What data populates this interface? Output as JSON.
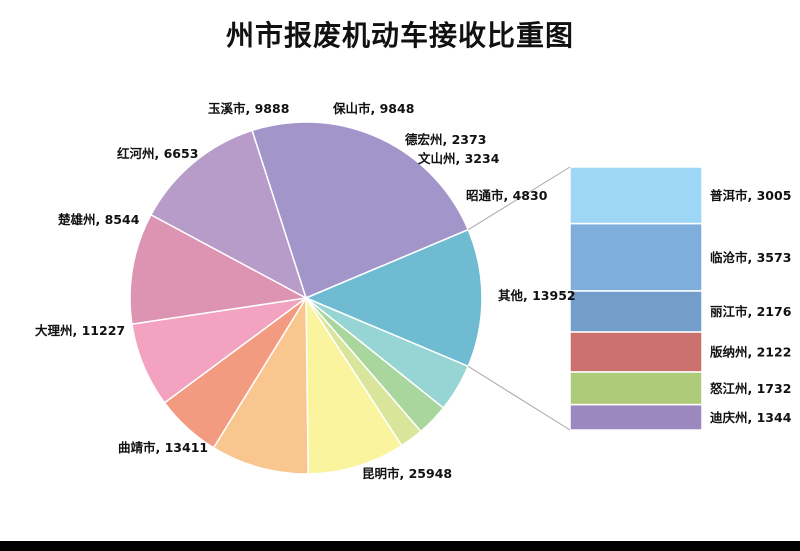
{
  "chart_data": {
    "type": "bar-of-pie",
    "title": "州市报废机动车接收比重图",
    "pie": [
      {
        "name": "昆明市",
        "value": 25948,
        "label": "昆明市, 25948",
        "color": "#A195C9"
      },
      {
        "name": "其他",
        "value": 13952,
        "label": "其他, 13952",
        "color": "#6FBBD2"
      },
      {
        "name": "昭通市",
        "value": 4830,
        "label": "昭通市, 4830",
        "color": "#97D5D5"
      },
      {
        "name": "文山州",
        "value": 3234,
        "label": "文山州, 3234",
        "color": "#A8D69C"
      },
      {
        "name": "德宏州",
        "value": 2373,
        "label": "德宏州, 2373",
        "color": "#D9E59A"
      },
      {
        "name": "保山市",
        "value": 9848,
        "label": "保山市, 9848",
        "color": "#FBF49F"
      },
      {
        "name": "玉溪市",
        "value": 9888,
        "label": "玉溪市, 9888",
        "color": "#FAC68F"
      },
      {
        "name": "红河州",
        "value": 6653,
        "label": "红河州, 6653",
        "color": "#F39B80"
      },
      {
        "name": "楚雄州",
        "value": 8544,
        "label": "楚雄州, 8544",
        "color": "#F3A2C0"
      },
      {
        "name": "大理州",
        "value": 11227,
        "label": "大理州, 11227",
        "color": "#DD93B2"
      },
      {
        "name": "曲靖市",
        "value": 13411,
        "label": "曲靖市, 13411",
        "color": "#B79BC9"
      }
    ],
    "breakdown_of": "其他",
    "bar": [
      {
        "name": "普洱市",
        "value": 3005,
        "label": "普洱市, 3005",
        "color": "#9DD7F5"
      },
      {
        "name": "临沧市",
        "value": 3573,
        "label": "临沧市, 3573",
        "color": "#7FADDC"
      },
      {
        "name": "丽江市",
        "value": 2176,
        "label": "丽江市, 2176",
        "color": "#739DCB"
      },
      {
        "name": "版纳州",
        "value": 2122,
        "label": "版纳州, 2122",
        "color": "#CD716E"
      },
      {
        "name": "怒江州",
        "value": 1732,
        "label": "怒江州, 1732",
        "color": "#AECA7B"
      },
      {
        "name": "迪庆州",
        "value": 1344,
        "label": "迪庆州, 1344",
        "color": "#9B88BE"
      }
    ]
  }
}
